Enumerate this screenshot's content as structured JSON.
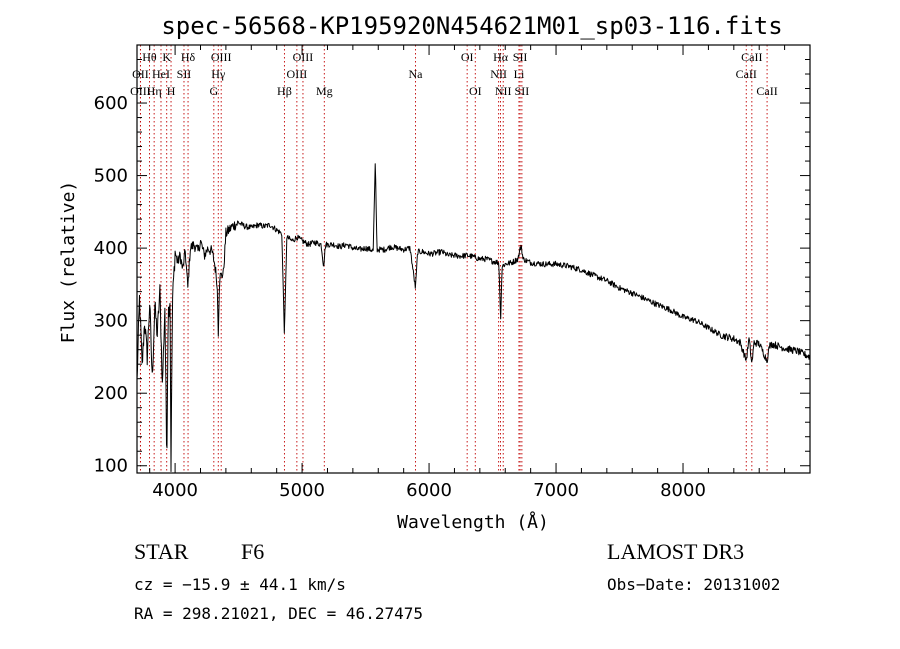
{
  "chart_data": {
    "type": "line",
    "title": "spec-56568-KP195920N454621M01_sp03-116.fits",
    "xlabel": "Wavelength (Å)",
    "ylabel": "Flux (relative)",
    "xlim": [
      3700,
      9000
    ],
    "ylim": [
      90,
      680
    ],
    "x_ticks": [
      4000,
      5000,
      6000,
      7000,
      8000
    ],
    "y_ticks": [
      100,
      200,
      300,
      400,
      500,
      600
    ],
    "tick_labels_x": [
      "4000",
      "5000",
      "6000",
      "7000",
      "8000"
    ],
    "tick_labels_y": [
      "100",
      "200",
      "300",
      "400",
      "500",
      "600"
    ],
    "series": [
      {
        "name": "flux",
        "anchors": [
          [
            3700,
            215
          ],
          [
            3720,
            330
          ],
          [
            3740,
            235
          ],
          [
            3760,
            300
          ],
          [
            3780,
            250
          ],
          [
            3800,
            325
          ],
          [
            3820,
            220
          ],
          [
            3840,
            320
          ],
          [
            3860,
            280
          ],
          [
            3880,
            340
          ],
          [
            3900,
            210
          ],
          [
            3920,
            320
          ],
          [
            3934,
            100
          ],
          [
            3945,
            310
          ],
          [
            3960,
            330
          ],
          [
            3968,
            100
          ],
          [
            3980,
            330
          ],
          [
            4000,
            395
          ],
          [
            4020,
            380
          ],
          [
            4040,
            390
          ],
          [
            4060,
            370
          ],
          [
            4080,
            395
          ],
          [
            4100,
            345
          ],
          [
            4120,
            400
          ],
          [
            4150,
            405
          ],
          [
            4180,
            395
          ],
          [
            4200,
            410
          ],
          [
            4230,
            390
          ],
          [
            4260,
            400
          ],
          [
            4290,
            395
          ],
          [
            4310,
            380
          ],
          [
            4330,
            355
          ],
          [
            4340,
            285
          ],
          [
            4350,
            360
          ],
          [
            4380,
            365
          ],
          [
            4400,
            420
          ],
          [
            4450,
            430
          ],
          [
            4500,
            435
          ],
          [
            4550,
            430
          ],
          [
            4600,
            428
          ],
          [
            4650,
            432
          ],
          [
            4700,
            430
          ],
          [
            4750,
            432
          ],
          [
            4800,
            425
          ],
          [
            4840,
            420
          ],
          [
            4861,
            280
          ],
          [
            4880,
            415
          ],
          [
            4920,
            410
          ],
          [
            4960,
            415
          ],
          [
            5000,
            410
          ],
          [
            5050,
            405
          ],
          [
            5100,
            408
          ],
          [
            5150,
            405
          ],
          [
            5170,
            375
          ],
          [
            5185,
            405
          ],
          [
            5250,
            405
          ],
          [
            5300,
            402
          ],
          [
            5350,
            405
          ],
          [
            5400,
            400
          ],
          [
            5450,
            398
          ],
          [
            5500,
            400
          ],
          [
            5560,
            397
          ],
          [
            5577,
            520
          ],
          [
            5590,
            398
          ],
          [
            5650,
            398
          ],
          [
            5700,
            402
          ],
          [
            5750,
            400
          ],
          [
            5800,
            398
          ],
          [
            5850,
            400
          ],
          [
            5893,
            345
          ],
          [
            5910,
            395
          ],
          [
            5950,
            395
          ],
          [
            6000,
            392
          ],
          [
            6050,
            393
          ],
          [
            6100,
            395
          ],
          [
            6150,
            390
          ],
          [
            6200,
            390
          ],
          [
            6250,
            389
          ],
          [
            6300,
            390
          ],
          [
            6350,
            388
          ],
          [
            6400,
            385
          ],
          [
            6450,
            385
          ],
          [
            6500,
            382
          ],
          [
            6550,
            380
          ],
          [
            6563,
            300
          ],
          [
            6575,
            375
          ],
          [
            6600,
            378
          ],
          [
            6650,
            380
          ],
          [
            6700,
            385
          ],
          [
            6725,
            405
          ],
          [
            6740,
            385
          ],
          [
            6800,
            380
          ],
          [
            6900,
            378
          ],
          [
            7000,
            378
          ],
          [
            7100,
            375
          ],
          [
            7200,
            370
          ],
          [
            7300,
            362
          ],
          [
            7400,
            355
          ],
          [
            7500,
            345
          ],
          [
            7600,
            338
          ],
          [
            7700,
            330
          ],
          [
            7800,
            322
          ],
          [
            7900,
            315
          ],
          [
            8000,
            305
          ],
          [
            8100,
            300
          ],
          [
            8200,
            290
          ],
          [
            8300,
            280
          ],
          [
            8400,
            275
          ],
          [
            8450,
            270
          ],
          [
            8498,
            245
          ],
          [
            8520,
            275
          ],
          [
            8542,
            240
          ],
          [
            8560,
            270
          ],
          [
            8600,
            268
          ],
          [
            8662,
            245
          ],
          [
            8680,
            265
          ],
          [
            8700,
            268
          ],
          [
            8800,
            262
          ],
          [
            8900,
            258
          ],
          [
            9000,
            250
          ]
        ]
      }
    ],
    "spectral_lines": [
      {
        "label": "Hθ",
        "wavelength": 3798,
        "tier": 1
      },
      {
        "label": "OII",
        "wavelength": 3727,
        "tier": 2
      },
      {
        "label": "OIII",
        "wavelength": 3727,
        "tier": 3
      },
      {
        "label": "K",
        "wavelength": 3934,
        "tier": 1
      },
      {
        "label": "HeI",
        "wavelength": 3889,
        "tier": 2
      },
      {
        "label": "Hη",
        "wavelength": 3835,
        "tier": 3
      },
      {
        "label": "SII",
        "wavelength": 4070,
        "tier": 2
      },
      {
        "label": "H",
        "wavelength": 3968,
        "tier": 3
      },
      {
        "label": "Hδ",
        "wavelength": 4102,
        "tier": 1
      },
      {
        "label": "OIII",
        "wavelength": 4363,
        "tier": 1
      },
      {
        "label": "Hγ",
        "wavelength": 4340,
        "tier": 2
      },
      {
        "label": "G",
        "wavelength": 4305,
        "tier": 3
      },
      {
        "label": "Hβ",
        "wavelength": 4861,
        "tier": 3
      },
      {
        "label": "OIII",
        "wavelength": 5007,
        "tier": 1
      },
      {
        "label": "OIII",
        "wavelength": 4959,
        "tier": 2
      },
      {
        "label": "Mg",
        "wavelength": 5175,
        "tier": 3
      },
      {
        "label": "Na",
        "wavelength": 5893,
        "tier": 2
      },
      {
        "label": "OI",
        "wavelength": 6300,
        "tier": 1
      },
      {
        "label": "OI",
        "wavelength": 6364,
        "tier": 3
      },
      {
        "label": "Hα",
        "wavelength": 6563,
        "tier": 1
      },
      {
        "label": "SII",
        "wavelength": 6717,
        "tier": 1
      },
      {
        "label": "NII",
        "wavelength": 6548,
        "tier": 2
      },
      {
        "label": "Li",
        "wavelength": 6708,
        "tier": 2
      },
      {
        "label": "NII",
        "wavelength": 6584,
        "tier": 3
      },
      {
        "label": "SII",
        "wavelength": 6731,
        "tier": 3
      },
      {
        "label": "CaII",
        "wavelength": 8542,
        "tier": 1
      },
      {
        "label": "CaII",
        "wavelength": 8498,
        "tier": 2
      },
      {
        "label": "CaII",
        "wavelength": 8662,
        "tier": 3
      }
    ],
    "line_color": "#c00000"
  },
  "info": {
    "object_class": "STAR",
    "subclass": "F6",
    "survey": "LAMOST DR3",
    "redshift": "cz = −15.9 ± 44.1 km/s",
    "obs_date": "Obs−Date: 20131002",
    "coords": "RA = 298.21021, DEC =  46.27475"
  }
}
